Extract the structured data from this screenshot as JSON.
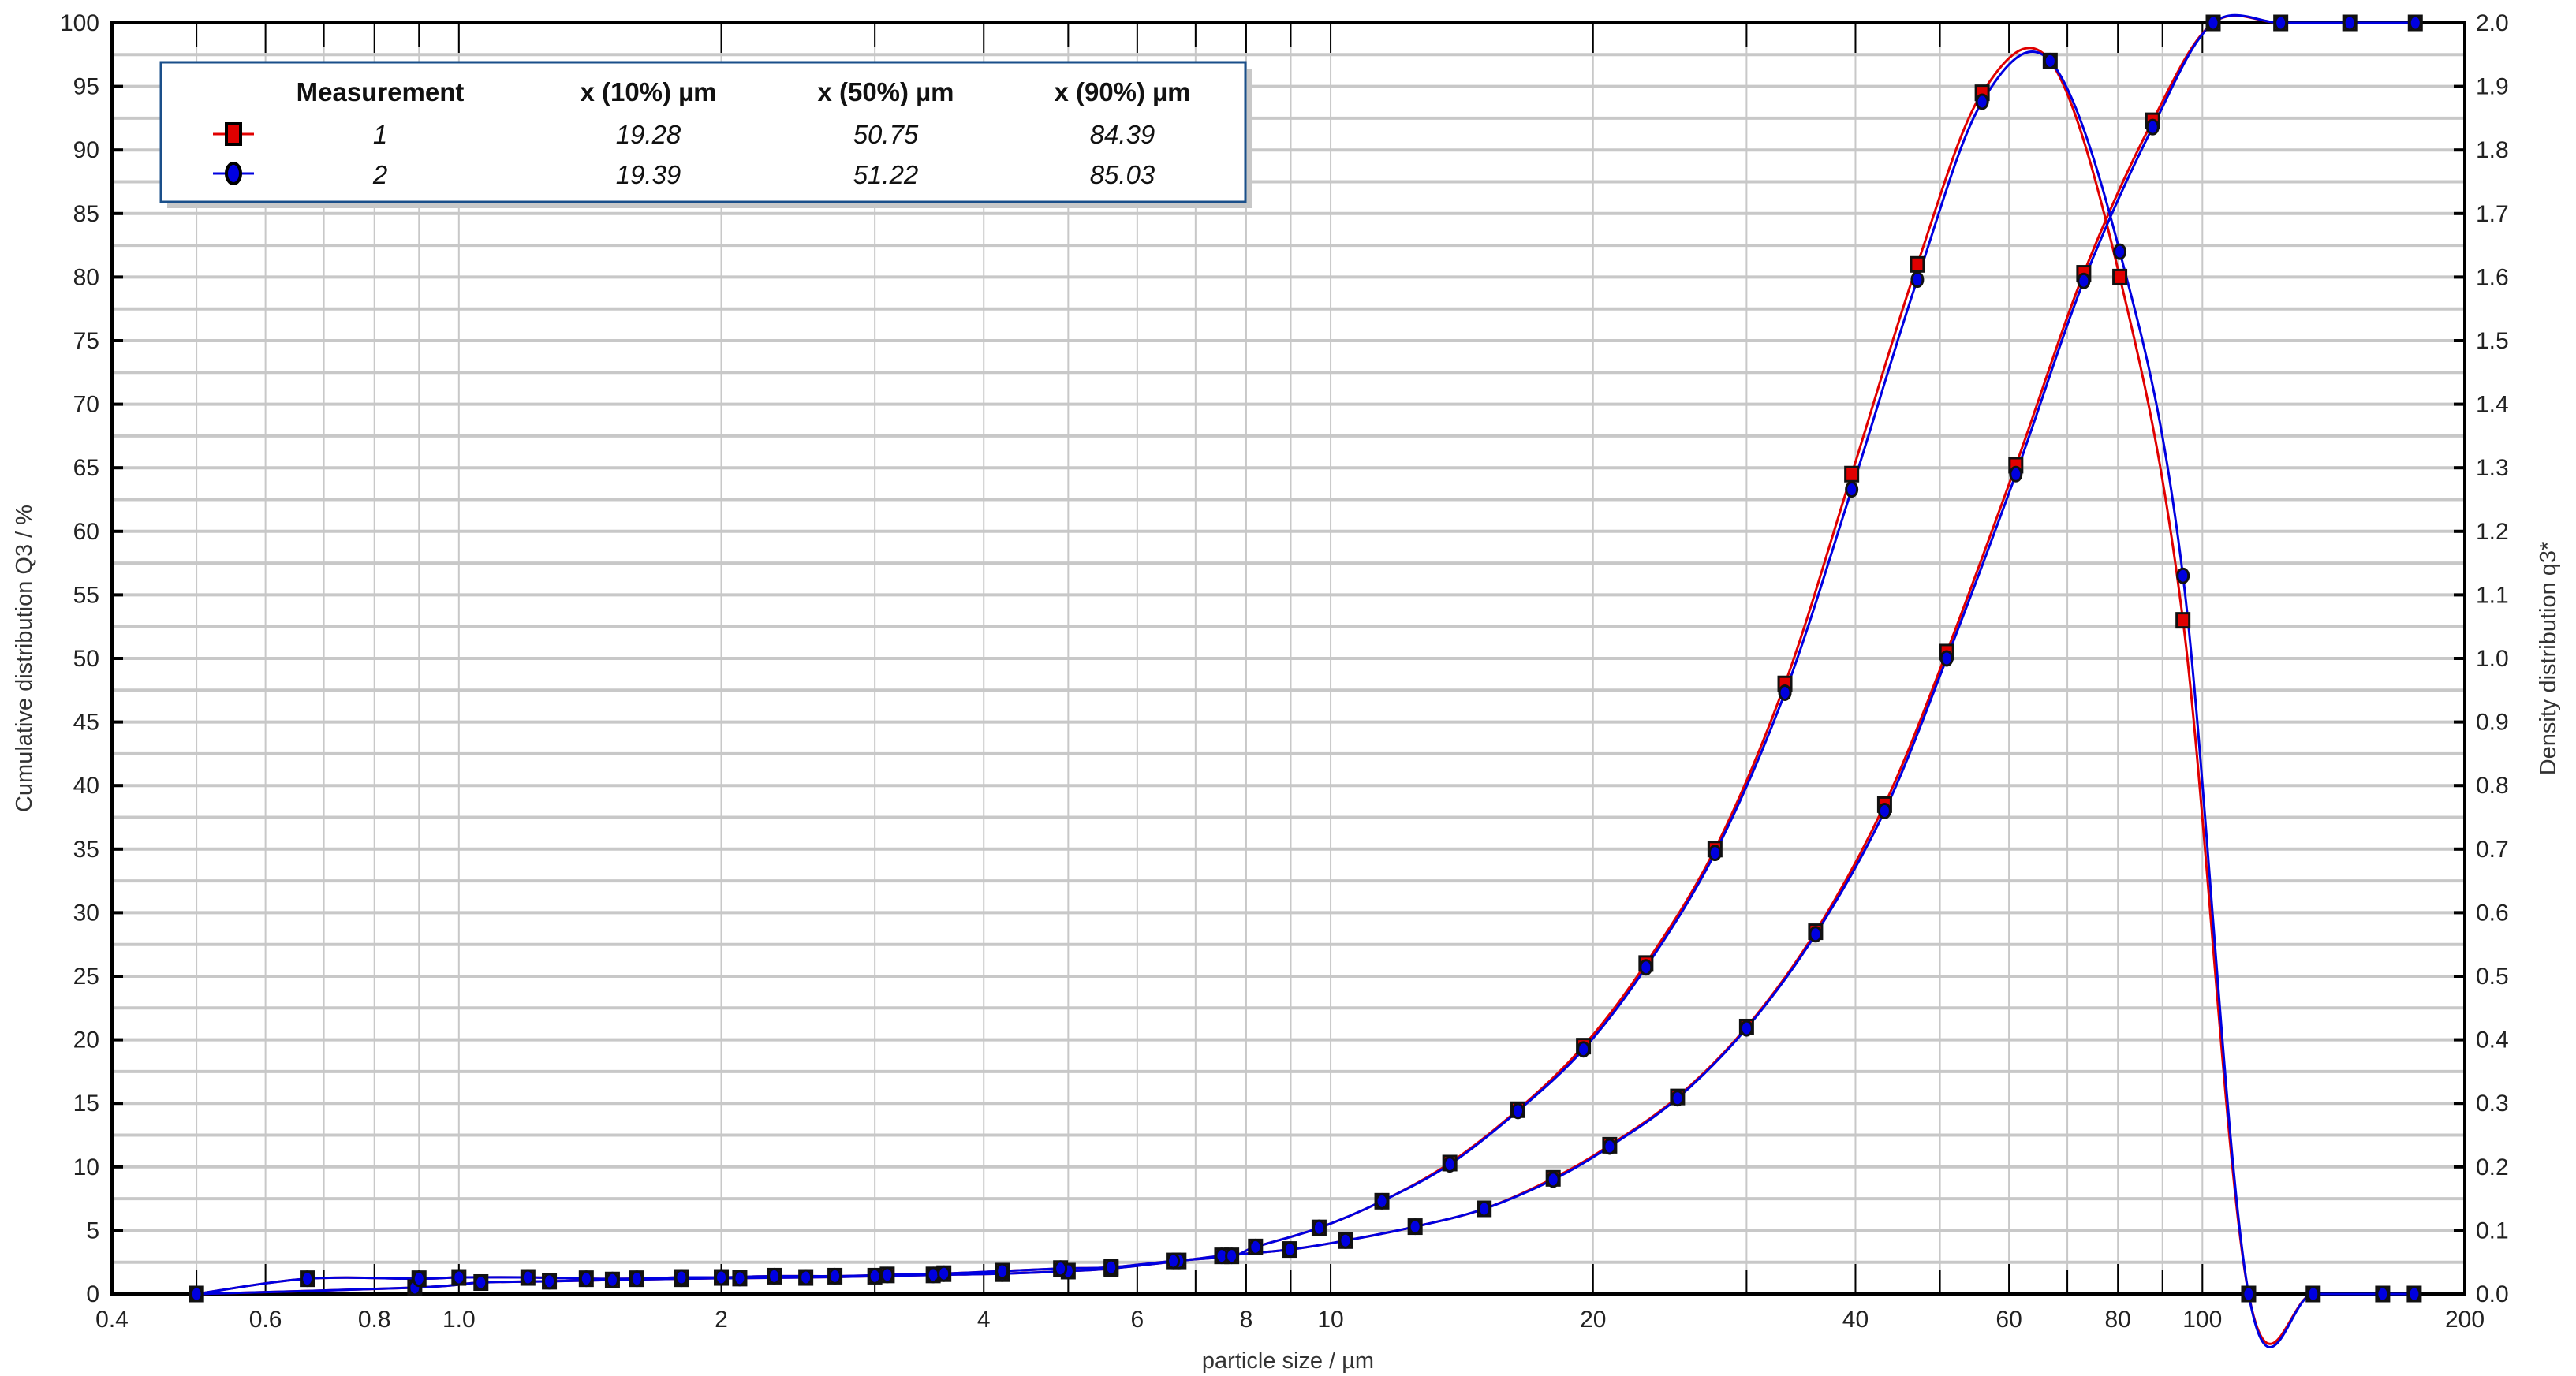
{
  "chart_data": {
    "type": "line",
    "xlabel": "particle size / µm",
    "ylabel": "Cumulative distribution Q3 / %",
    "y2label": "Density distribution q3*",
    "xscale": "log",
    "xlim": [
      0.4,
      200
    ],
    "ylim": [
      0,
      100
    ],
    "y2lim": [
      0,
      2.0
    ],
    "grid": true,
    "x_tick_labels": [
      "0.4",
      "0.6",
      "0.8",
      "1.0",
      "2",
      "4",
      "6",
      "8",
      "10",
      "20",
      "40",
      "60",
      "80",
      "100",
      "200"
    ],
    "x_ticks": [
      0.4,
      0.6,
      0.8,
      1.0,
      2,
      4,
      6,
      8,
      10,
      20,
      40,
      60,
      80,
      100,
      200
    ],
    "y_tick_labels": [
      "0",
      "5",
      "10",
      "15",
      "20",
      "25",
      "30",
      "35",
      "40",
      "45",
      "50",
      "55",
      "60",
      "65",
      "70",
      "75",
      "80",
      "85",
      "90",
      "95",
      "100"
    ],
    "y2_tick_labels": [
      "0.0",
      "0.1",
      "0.2",
      "0.3",
      "0.4",
      "0.5",
      "0.6",
      "0.7",
      "0.8",
      "0.9",
      "1.0",
      "1.1",
      "1.2",
      "1.3",
      "1.4",
      "1.5",
      "1.6",
      "1.7",
      "1.8",
      "1.9",
      "2.0"
    ],
    "legend": {
      "placement": "top-left",
      "headers": [
        "Measurement",
        "x (10%) µm",
        "x (50%) µm",
        "x (90%) µm"
      ],
      "rows": [
        {
          "name": "1",
          "x10": "19.28",
          "x50": "50.75",
          "x90": "84.39",
          "color": "#e00000",
          "marker": "square"
        },
        {
          "name": "2",
          "x10": "19.39",
          "x50": "51.22",
          "x90": "85.03",
          "color": "#0000e0",
          "marker": "circle"
        }
      ]
    },
    "cumulative_x": [
      0.5,
      0.89,
      1.06,
      1.27,
      1.5,
      1.8,
      2.1,
      2.5,
      3.0,
      3.5,
      4.2,
      5.0,
      5.6,
      6.7,
      7.5,
      8.98,
      10.4,
      12.5,
      15.0,
      18.0,
      20.9,
      25.0,
      30.0,
      36.0,
      43.2,
      50.9,
      61.1,
      73.1,
      87.7,
      102.9,
      123,
      147.6,
      175.5
    ],
    "density_x": [
      0.5,
      0.67,
      0.9,
      1.0,
      1.2,
      1.4,
      1.6,
      1.8,
      2.0,
      2.3,
      2.7,
      3.1,
      3.6,
      4.2,
      4.9,
      5.6,
      6.6,
      7.7,
      8.2,
      9.7,
      11.45,
      13.7,
      16.4,
      19.5,
      23.0,
      27.6,
      33.2,
      39.6,
      47.1,
      55.9,
      66.9,
      80.4,
      95,
      113,
      134,
      161,
      175
    ],
    "series": [
      {
        "name": "1",
        "color": "#e00000",
        "cumulative": [
          0,
          0.5,
          0.9,
          1.0,
          1.1,
          1.2,
          1.25,
          1.3,
          1.4,
          1.5,
          1.6,
          1.8,
          2.0,
          2.6,
          3.0,
          3.5,
          4.2,
          5.3,
          6.7,
          9.1,
          11.7,
          15.5,
          21.0,
          28.5,
          38.5,
          50.5,
          65.2,
          80.3,
          92.3,
          100,
          100,
          100,
          100
        ],
        "density": [
          0,
          0.024,
          0.024,
          0.026,
          0.026,
          0.024,
          0.024,
          0.026,
          0.026,
          0.028,
          0.028,
          0.03,
          0.032,
          0.036,
          0.04,
          0.042,
          0.052,
          0.06,
          0.074,
          0.104,
          0.146,
          0.206,
          0.29,
          0.39,
          0.52,
          0.7,
          0.96,
          1.29,
          1.62,
          1.89,
          1.94,
          1.6,
          1.06,
          0,
          0,
          0,
          0
        ]
      },
      {
        "name": "2",
        "color": "#0000e0",
        "cumulative": [
          0,
          0.5,
          0.9,
          1.0,
          1.1,
          1.2,
          1.25,
          1.3,
          1.4,
          1.5,
          1.6,
          1.8,
          2.0,
          2.6,
          3.0,
          3.5,
          4.2,
          5.3,
          6.7,
          9.0,
          11.6,
          15.4,
          20.9,
          28.3,
          38.0,
          50.0,
          64.5,
          79.7,
          91.8,
          100,
          100,
          100,
          100
        ],
        "density": [
          0,
          0.024,
          0.024,
          0.026,
          0.026,
          0.024,
          0.024,
          0.026,
          0.026,
          0.028,
          0.028,
          0.03,
          0.032,
          0.036,
          0.04,
          0.042,
          0.052,
          0.06,
          0.074,
          0.104,
          0.146,
          0.204,
          0.288,
          0.385,
          0.514,
          0.694,
          0.946,
          1.266,
          1.596,
          1.876,
          1.94,
          1.64,
          1.13,
          0,
          0,
          0,
          0
        ]
      }
    ]
  }
}
